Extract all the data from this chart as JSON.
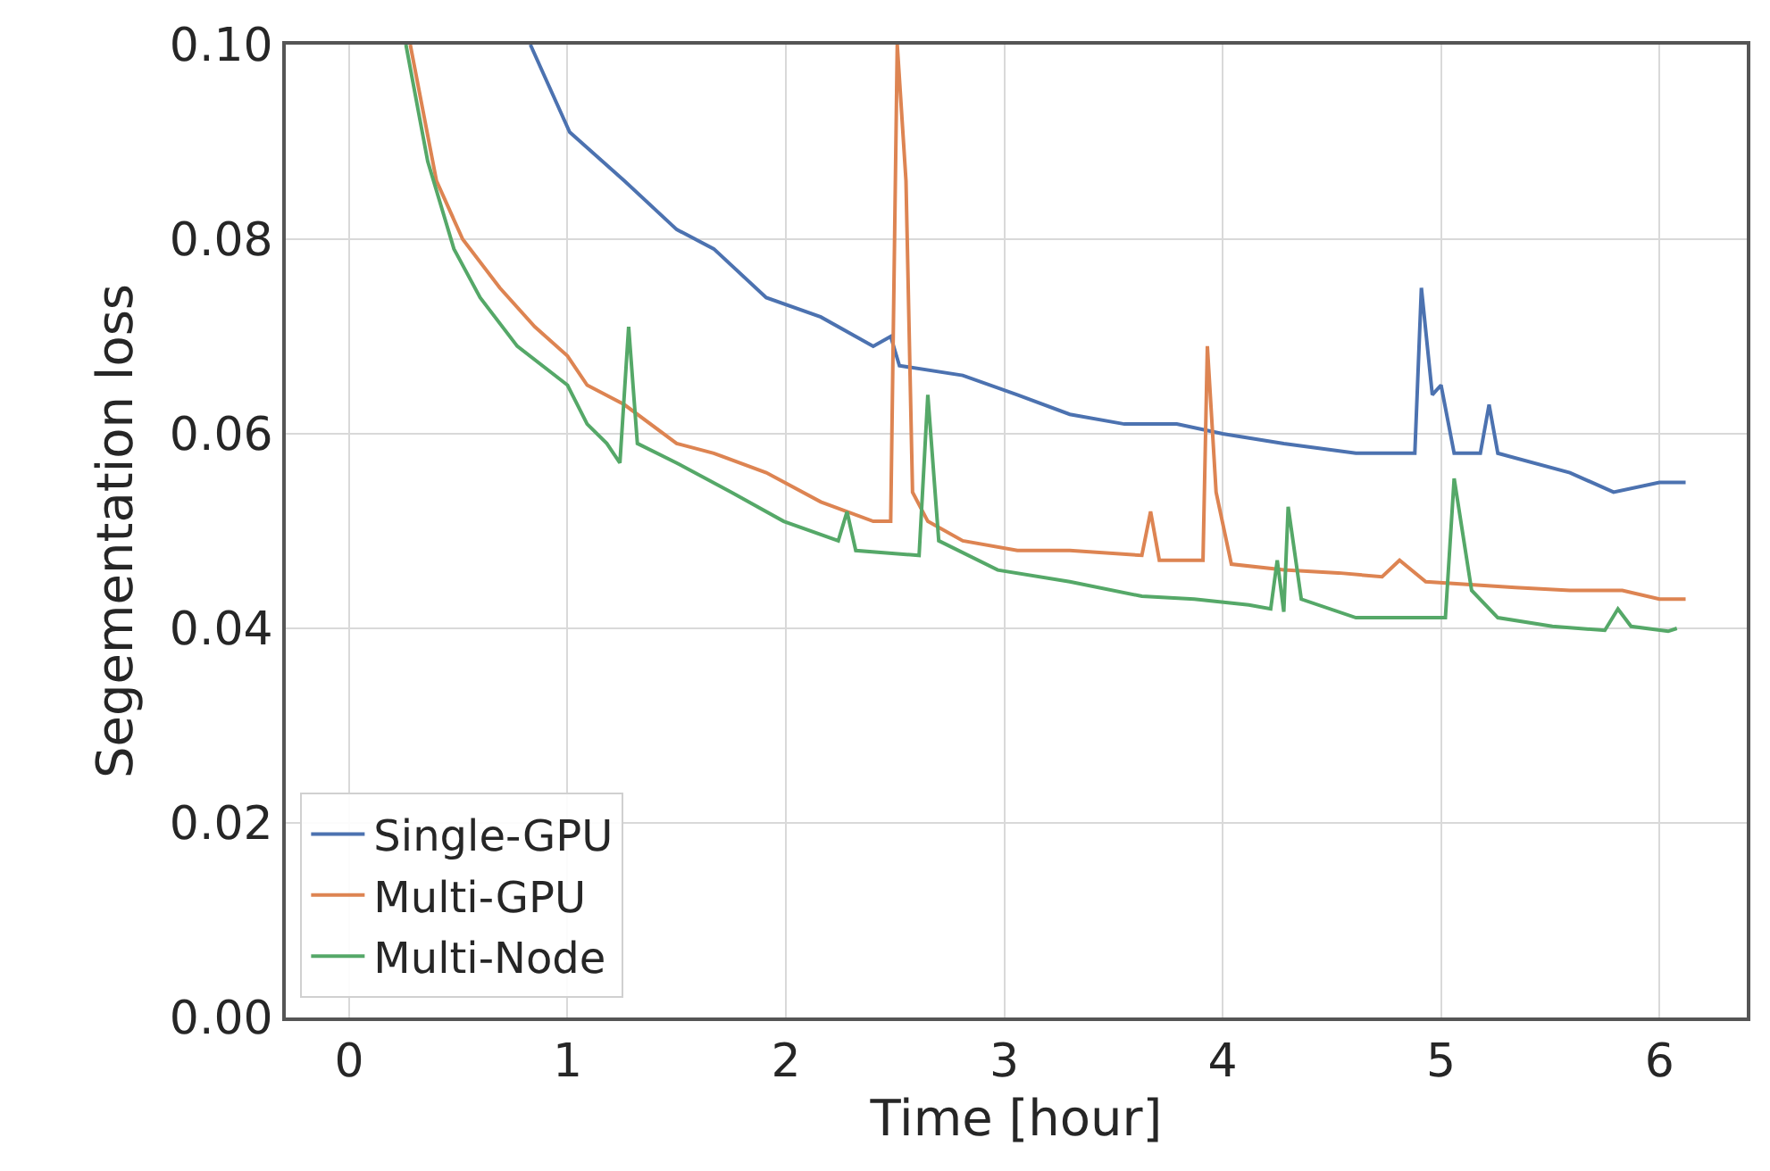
{
  "chart_data": {
    "type": "line",
    "xlabel": "Time [hour]",
    "ylabel": "Segementation loss",
    "xlim": [
      -0.29,
      6.4
    ],
    "xticks": [
      0,
      1,
      2,
      3,
      4,
      5,
      6
    ],
    "ylim": [
      0,
      0.1
    ],
    "yticks": [
      {
        "value": 0,
        "label": "0.00"
      },
      {
        "value": 0.02,
        "label": "0.02"
      },
      {
        "value": 0.04,
        "label": "0.04"
      },
      {
        "value": 0.06,
        "label": "0.06"
      },
      {
        "value": 0.08,
        "label": "0.08"
      },
      {
        "value": 0.1,
        "label": "0.10"
      }
    ],
    "grid": true,
    "legend": "bottom left",
    "marker": "none",
    "line_style": "solid",
    "series": [
      {
        "name": "Single-GPU",
        "color": "#4c72b0",
        "x": [
          0.83,
          0.89,
          1.01,
          1.26,
          1.5,
          1.67,
          1.91,
          2.16,
          2.4,
          2.48,
          2.52,
          2.81,
          3.06,
          3.3,
          3.55,
          3.79,
          4.0,
          4.28,
          4.61,
          4.77,
          4.88,
          4.91,
          4.96,
          5.0,
          5.06,
          5.18,
          5.22,
          5.26,
          5.59,
          5.79,
          6.0,
          6.12
        ],
        "values": [
          0.1,
          0.097,
          0.091,
          0.086,
          0.081,
          0.079,
          0.074,
          0.072,
          0.069,
          0.07,
          0.067,
          0.066,
          0.064,
          0.062,
          0.061,
          0.061,
          0.06,
          0.059,
          0.058,
          0.058,
          0.058,
          0.075,
          0.064,
          0.065,
          0.058,
          0.058,
          0.063,
          0.058,
          0.056,
          0.054,
          0.055,
          0.055
        ]
      },
      {
        "name": "Multi-GPU",
        "color": "#dd8452",
        "x": [
          0.28,
          0.4,
          0.52,
          0.69,
          0.85,
          1.0,
          1.09,
          1.26,
          1.5,
          1.67,
          1.91,
          2.16,
          2.4,
          2.48,
          2.51,
          2.55,
          2.58,
          2.65,
          2.81,
          3.06,
          3.3,
          3.63,
          3.67,
          3.71,
          3.91,
          3.93,
          3.97,
          4.04,
          4.28,
          4.53,
          4.73,
          4.81,
          4.93,
          5.34,
          5.59,
          5.83,
          6.0,
          6.12
        ],
        "values": [
          0.1,
          0.086,
          0.08,
          0.075,
          0.071,
          0.068,
          0.065,
          0.063,
          0.059,
          0.058,
          0.056,
          0.053,
          0.051,
          0.051,
          0.1,
          0.086,
          0.054,
          0.051,
          0.049,
          0.048,
          0.048,
          0.0475,
          0.052,
          0.047,
          0.047,
          0.069,
          0.054,
          0.0466,
          0.046,
          0.0457,
          0.0453,
          0.047,
          0.0448,
          0.0442,
          0.0439,
          0.0439,
          0.043,
          0.043
        ]
      },
      {
        "name": "Multi-Node",
        "color": "#55a868",
        "x": [
          0.26,
          0.36,
          0.48,
          0.6,
          0.77,
          1.0,
          1.09,
          1.18,
          1.24,
          1.28,
          1.32,
          1.5,
          1.75,
          1.99,
          2.24,
          2.28,
          2.32,
          2.61,
          2.65,
          2.7,
          2.97,
          3.3,
          3.63,
          3.87,
          4.12,
          4.22,
          4.25,
          4.28,
          4.3,
          4.36,
          4.61,
          5.02,
          5.06,
          5.14,
          5.26,
          5.51,
          5.75,
          5.81,
          5.87,
          6.04,
          6.08
        ],
        "values": [
          0.1,
          0.088,
          0.079,
          0.074,
          0.069,
          0.065,
          0.061,
          0.059,
          0.057,
          0.071,
          0.059,
          0.057,
          0.054,
          0.051,
          0.049,
          0.052,
          0.048,
          0.0475,
          0.064,
          0.049,
          0.046,
          0.0448,
          0.0433,
          0.043,
          0.0424,
          0.042,
          0.047,
          0.0417,
          0.0525,
          0.043,
          0.0411,
          0.0411,
          0.0554,
          0.0439,
          0.0411,
          0.0402,
          0.0398,
          0.042,
          0.0402,
          0.0397,
          0.04
        ]
      }
    ]
  }
}
